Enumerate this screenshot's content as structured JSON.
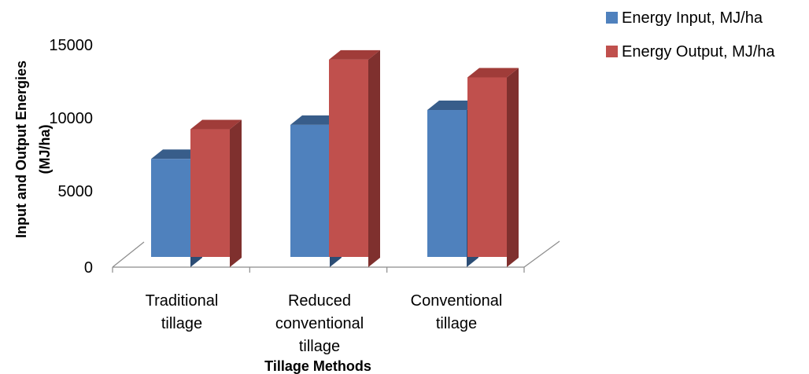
{
  "chart_data": {
    "type": "bar",
    "title": "",
    "xlabel": "Tillage Methods",
    "ylabel_line1": "Input and Output Energies",
    "ylabel_line2": "(MJ/ha)",
    "categories": [
      [
        "Traditional",
        "tillage"
      ],
      [
        "Reduced",
        "conventional",
        "tillage"
      ],
      [
        "Conventional",
        "tillage"
      ]
    ],
    "y_ticks": [
      "0",
      "5000",
      "10000",
      "15000"
    ],
    "ylim": [
      0,
      15000
    ],
    "series": [
      {
        "name": "Energy Input, MJ/ha",
        "values": [
          7300,
          9600,
          10600
        ],
        "color": "#4F81BD",
        "top_color": "#385D8A",
        "side_color": "#2C4D75"
      },
      {
        "name": "Energy Output, MJ/ha",
        "values": [
          9300,
          14000,
          12800
        ],
        "color": "#C0504D",
        "top_color": "#A03C39",
        "side_color": "#7F302E"
      }
    ],
    "legend_position": "top-right",
    "grid": false,
    "style": "3d-clustered-column"
  }
}
